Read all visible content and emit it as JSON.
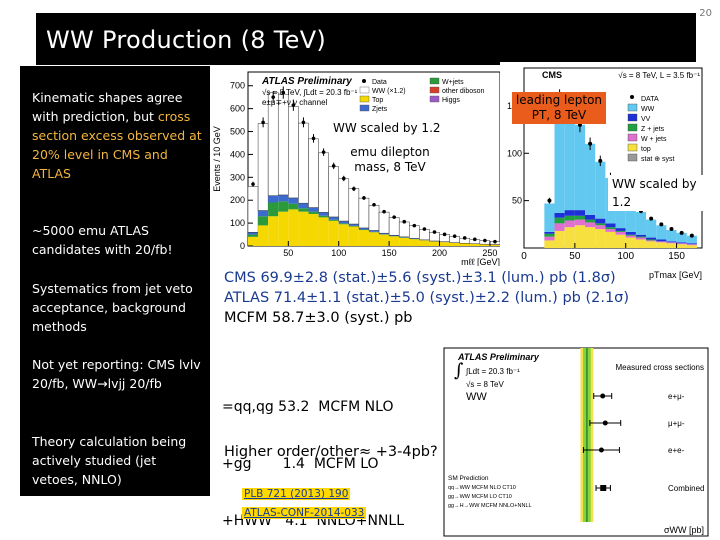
{
  "slide": {
    "page_number": "20",
    "title": "WW Production (8 TeV)"
  },
  "bullets": [
    {
      "pre": "Kinematic shapes agree with prediction, but ",
      "highlight": "cross section excess observed at 20% level in CMS and ATLAS",
      "post": ""
    },
    {
      "pre": "~5000 emu ATLAS candidates with 20/fb!",
      "highlight": "",
      "post": ""
    },
    {
      "pre": "Systematics from jet veto acceptance, background methods",
      "highlight": "",
      "post": ""
    },
    {
      "pre": "Not yet reporting: CMS lvlv 20/fb, WW→lvjj 20/fb",
      "highlight": "",
      "post": ""
    },
    {
      "pre": "Theory calculation being actively studied (jet vetoes, NNLO)",
      "highlight": "",
      "post": ""
    }
  ],
  "callouts": {
    "atlas_scaled": "WW scaled by 1.2",
    "emu_mass": "emu dilepton mass, 8 TeV",
    "lead_lepton": "leading lepton PT, 8 TeV",
    "cms_scaled": "WW scaled by 1.2"
  },
  "results": {
    "cms": "CMS   69.9±2.8 (stat.)±5.6 (syst.)±3.1 (lum.) pb (1.8σ)",
    "atlas": "ATLAS  71.4±1.1 (stat.)±5.0 (syst.)±2.2 (lum.) pb (2.1σ)",
    "mcfm": "MCFM 58.7±3.0 (syst.) pb"
  },
  "breakdown": {
    "line1": "=qq,qg 53.2  MCFM NLO",
    "line2": "+gg       1.4  MCFM LO",
    "line3": "+HWW   4.1  NNLO+NNLL"
  },
  "higher_order": "Higher order/other≈ +3-4pb?",
  "references": {
    "plb": "PLB 721 (2013) 190",
    "conf": "ATLAS-CONF-2014-033"
  },
  "chart_data": [
    {
      "type": "bar",
      "chart_title": "ATLAS Preliminary",
      "header": "√s = 8 TeV, ∫Ldt = 20.3 fb⁻¹",
      "channel_label": "e±μ∓+ν ν channel",
      "xlabel": "mℓℓ [GeV]",
      "ylabel": "Events / 10 GeV",
      "x_ticks": [
        "50",
        "100",
        "150",
        "200",
        "250"
      ],
      "y_ticks": [
        "0",
        "100",
        "200",
        "300",
        "400",
        "500",
        "600",
        "700"
      ],
      "ylim": [
        0,
        760
      ],
      "legend": [
        "Data",
        "WW (×1.2)",
        "Top",
        "Zjets",
        "W+jets",
        "other diboson",
        "Higgs"
      ],
      "colors": {
        "ww": "#ffffff",
        "top": "#f5d800",
        "zjets": "#2a9a3a",
        "wjets": "#3c6acf",
        "diboson": "#d43e2a",
        "higgs": "#9b59c6"
      },
      "x": [
        15,
        25,
        35,
        45,
        55,
        65,
        75,
        85,
        95,
        105,
        115,
        125,
        135,
        145,
        155,
        165,
        175,
        185,
        195,
        205,
        215,
        225,
        235,
        245,
        255
      ],
      "series": [
        {
          "name": "Top",
          "values": [
            40,
            90,
            130,
            150,
            160,
            150,
            140,
            125,
            110,
            95,
            85,
            70,
            60,
            50,
            42,
            36,
            30,
            25,
            20,
            17,
            14,
            11,
            9,
            7,
            6
          ]
        },
        {
          "name": "Zjets",
          "values": [
            10,
            40,
            60,
            45,
            25,
            15,
            10,
            7,
            5,
            4,
            3,
            2,
            2,
            1,
            1,
            1,
            1,
            0,
            0,
            0,
            0,
            0,
            0,
            0,
            0
          ]
        },
        {
          "name": "W+jets",
          "values": [
            10,
            25,
            30,
            28,
            25,
            22,
            18,
            15,
            12,
            10,
            8,
            7,
            6,
            5,
            4,
            3,
            3,
            2,
            2,
            2,
            1,
            1,
            1,
            1,
            1
          ]
        },
        {
          "name": "WW (×1.2)",
          "values": [
            200,
            380,
            450,
            440,
            400,
            350,
            300,
            260,
            220,
            185,
            155,
            130,
            110,
            92,
            78,
            65,
            55,
            46,
            38,
            32,
            27,
            22,
            18,
            15,
            12
          ]
        }
      ],
      "data": [
        270,
        540,
        650,
        670,
        615,
        540,
        470,
        410,
        350,
        295,
        250,
        210,
        180,
        150,
        126,
        106,
        89,
        74,
        61,
        51,
        43,
        35,
        29,
        24,
        19
      ]
    },
    {
      "type": "bar",
      "chart_title": "CMS",
      "header": "√s = 8 TeV, L = 3.5 fb⁻¹",
      "xlabel": "pTmax [GeV]",
      "ylabel": "",
      "x_ticks": [
        "0",
        "50",
        "100",
        "150"
      ],
      "y_ticks": [
        "50",
        "100",
        "150"
      ],
      "ylim": [
        0,
        190
      ],
      "legend": [
        "DATA",
        "WW",
        "VV",
        "Z + jets",
        "W + jets",
        "top",
        "stat ⊕ syst"
      ],
      "colors": {
        "ww": "#62c8f0",
        "vv": "#1d2fd6",
        "zjets": "#20a040",
        "wjets": "#e070d0",
        "top": "#f5e040"
      },
      "x": [
        25,
        35,
        45,
        55,
        65,
        75,
        85,
        95,
        105,
        115,
        125,
        135,
        145,
        155,
        165
      ],
      "series": [
        {
          "name": "top",
          "values": [
            8,
            18,
            22,
            24,
            22,
            20,
            17,
            14,
            11,
            9,
            7,
            6,
            5,
            4,
            3
          ]
        },
        {
          "name": "W + jets",
          "values": [
            4,
            8,
            7,
            6,
            5,
            4,
            3,
            3,
            2,
            2,
            1,
            1,
            1,
            1,
            1
          ]
        },
        {
          "name": "Z + jets",
          "values": [
            3,
            6,
            5,
            4,
            3,
            2,
            2,
            1,
            1,
            1,
            1,
            0,
            0,
            0,
            0
          ]
        },
        {
          "name": "VV",
          "values": [
            2,
            5,
            6,
            6,
            5,
            5,
            4,
            3,
            3,
            2,
            2,
            2,
            1,
            1,
            1
          ]
        },
        {
          "name": "WW",
          "values": [
            30,
            115,
            110,
            90,
            75,
            60,
            48,
            38,
            30,
            24,
            19,
            15,
            12,
            10,
            8
          ]
        }
      ],
      "data": [
        50,
        158,
        150,
        130,
        110,
        92,
        75,
        60,
        48,
        39,
        31,
        25,
        20,
        16,
        13
      ]
    },
    {
      "type": "scatter",
      "chart_title": "ATLAS Preliminary",
      "header": "∫Ldt = 20.3 fb⁻¹ ; √s = 8 TeV ; WW",
      "xlabel": "σWW [pb]",
      "legend": [
        "Measured cross sections",
        "e+μ-",
        "μ+μ-",
        "e+e-",
        "Combined"
      ],
      "prediction_labels": [
        "SM Prediction",
        "qq→WW MCFM NLO CT10",
        "gg→WW MCFM LO CT10",
        "gg→H→WW MCFM NNLO+NNLL"
      ],
      "band_colors": {
        "outer": "#f5e050",
        "inner": "#8ad23a",
        "line": "#2a8a2a"
      },
      "rows": [
        "e+μ-",
        "μ+μ-",
        "e+e-",
        "Combined"
      ],
      "values": [
        71.0,
        73.0,
        70.0,
        71.4
      ],
      "errors": [
        7.0,
        12.0,
        14.0,
        5.6
      ],
      "prediction": 58.7
    }
  ]
}
